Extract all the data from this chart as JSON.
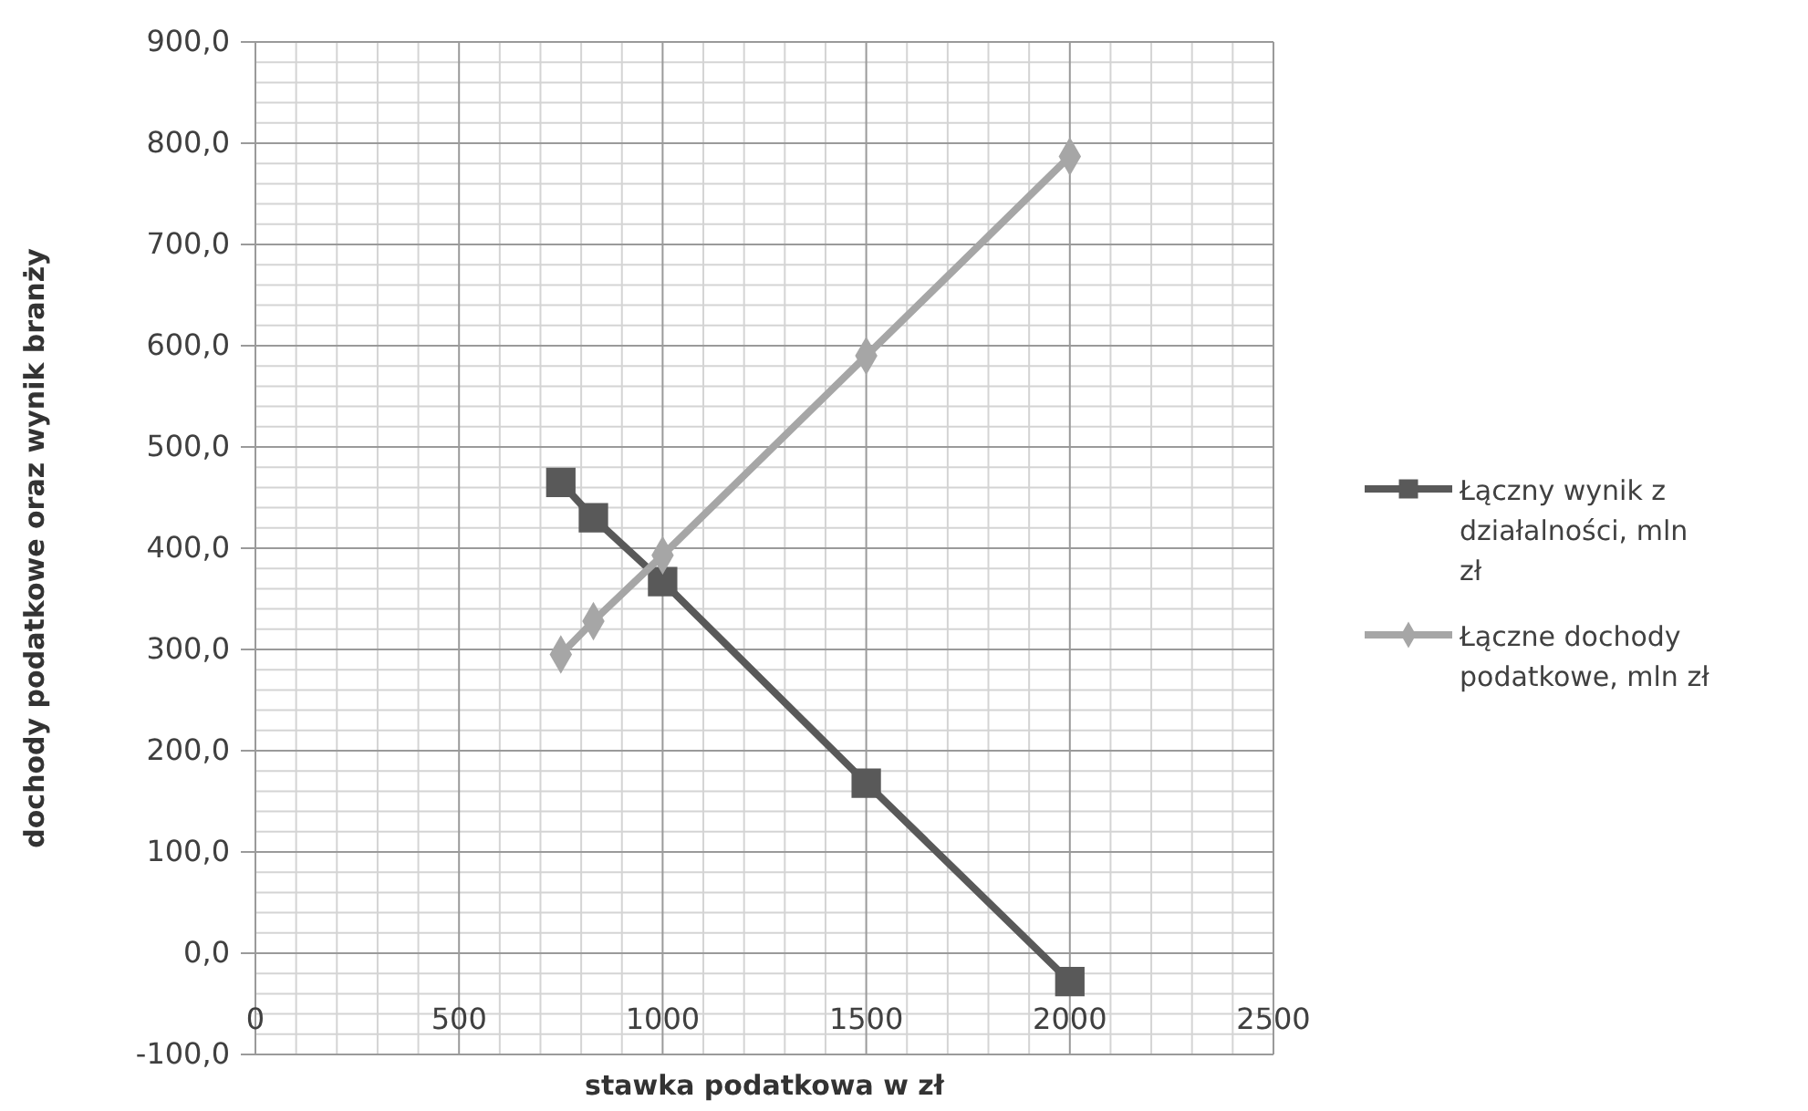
{
  "chart_data": {
    "type": "line",
    "xlabel": "stawka podatkowa w zł",
    "ylabel": "dochody podatkowe oraz wynik branży",
    "x": [
      750,
      830,
      1000,
      1500,
      2000
    ],
    "series": [
      {
        "name": "Łączny wynik z działalności, mln zł",
        "color": "#595959",
        "marker": "square",
        "values": [
          465,
          430,
          367,
          168,
          -28
        ]
      },
      {
        "name": "Łączne dochody podatkowe, mln zł",
        "color": "#a6a6a6",
        "marker": "diamond",
        "values": [
          295,
          328,
          393,
          590,
          787
        ]
      }
    ],
    "xlim": [
      0,
      2500
    ],
    "xticks": [
      0,
      500,
      1000,
      1500,
      2000,
      2500
    ],
    "ylim": [
      -100,
      900
    ],
    "yticks": [
      {
        "value": -100,
        "label": "-100,0"
      },
      {
        "value": 0,
        "label": "0,0"
      },
      {
        "value": 100,
        "label": "100,0"
      },
      {
        "value": 200,
        "label": "200,0"
      },
      {
        "value": 300,
        "label": "300,0"
      },
      {
        "value": 400,
        "label": "400,0"
      },
      {
        "value": 500,
        "label": "500,0"
      },
      {
        "value": 600,
        "label": "600,0"
      },
      {
        "value": 700,
        "label": "700,0"
      },
      {
        "value": 800,
        "label": "800,0"
      },
      {
        "value": 900,
        "label": "900,0"
      }
    ],
    "grid": true,
    "legend": "right",
    "line_style": "solid"
  }
}
